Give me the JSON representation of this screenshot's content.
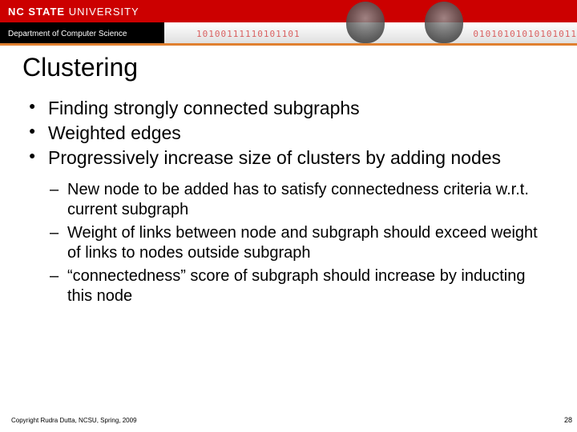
{
  "header": {
    "university": "NC STATE",
    "university_suffix": "UNIVERSITY",
    "department": "Department of Computer Science",
    "binary_left": "10100111110101101",
    "binary_right": "01010101010101011"
  },
  "slide": {
    "title": "Clustering",
    "bullets": [
      "Finding strongly connected subgraphs",
      "Weighted edges",
      "Progressively increase size of clusters by adding nodes"
    ],
    "sub_bullets": [
      "New node to be added has to satisfy connectedness criteria w.r.t. current subgraph",
      "Weight of links between node and subgraph should exceed weight of links to nodes outside subgraph",
      "“connectedness” score of subgraph should increase by inducting this node"
    ]
  },
  "footer": {
    "copyright": "Copyright Rudra Dutta, NCSU, Spring, 2009",
    "page": "28"
  },
  "colors": {
    "brand_red": "#cc0000",
    "orange_line": "#e08030",
    "black": "#000000",
    "white": "#ffffff"
  }
}
